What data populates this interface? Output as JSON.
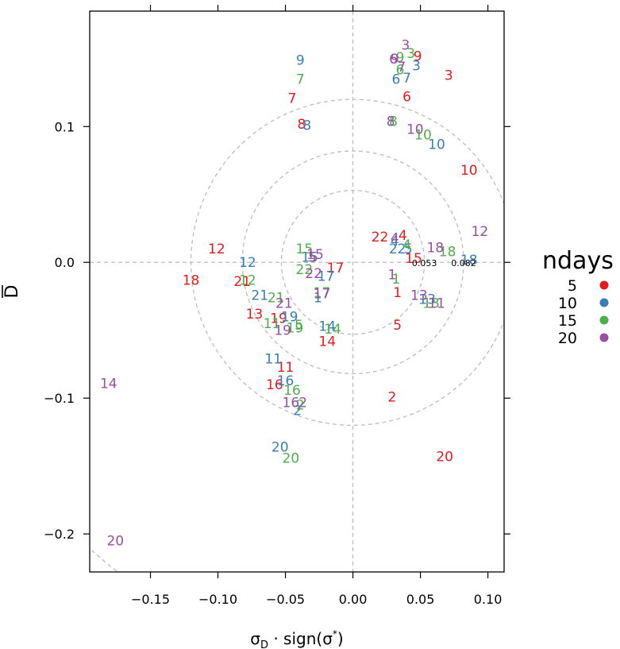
{
  "chart_data": {
    "type": "scatter",
    "xlabel": "σD · sign(σ*)",
    "ylabel": "D̄",
    "xlim": [
      -0.195,
      0.112
    ],
    "ylim": [
      -0.228,
      0.185
    ],
    "x_ticks": [
      -0.15,
      -0.1,
      -0.05,
      0.0,
      0.05,
      0.1
    ],
    "x_tick_labels": [
      "−0.15",
      "−0.10",
      "−0.05",
      "0.00",
      "0.05",
      "0.10"
    ],
    "y_ticks": [
      0.1,
      0.0,
      -0.1,
      -0.2
    ],
    "y_tick_labels": [
      "0.1",
      "0.0",
      "−0.1",
      "−0.2"
    ],
    "reference_lines": {
      "x": 0,
      "y": 0
    },
    "rings": [
      {
        "radius": 0.053,
        "label": "0.053"
      },
      {
        "radius": 0.082,
        "label": "0.082"
      },
      {
        "radius": 0.12,
        "label": ""
      },
      {
        "radius": 0.287,
        "label": ""
      }
    ],
    "marker": "point labels show the group number",
    "legend": {
      "title": "ndays",
      "placement": "right",
      "entries": [
        {
          "label": "5",
          "color": "#E41A1C"
        },
        {
          "label": "10",
          "color": "#377EB8"
        },
        {
          "label": "15",
          "color": "#4DAF4A"
        },
        {
          "label": "20",
          "color": "#984EA3"
        }
      ]
    },
    "series": [
      {
        "name": "5",
        "color": "#E41A1C",
        "points": [
          {
            "x": 0.033,
            "y": -0.022,
            "label": "1"
          },
          {
            "x": 0.029,
            "y": -0.099,
            "label": "2"
          },
          {
            "x": 0.071,
            "y": 0.138,
            "label": "3"
          },
          {
            "x": 0.037,
            "y": 0.02,
            "label": "4"
          },
          {
            "x": 0.033,
            "y": -0.046,
            "label": "5"
          },
          {
            "x": 0.04,
            "y": 0.122,
            "label": "6"
          },
          {
            "x": -0.045,
            "y": 0.121,
            "label": "7"
          },
          {
            "x": -0.038,
            "y": 0.102,
            "label": "8"
          },
          {
            "x": 0.048,
            "y": 0.152,
            "label": "9"
          },
          {
            "x": 0.086,
            "y": 0.068,
            "label": "10"
          },
          {
            "x": -0.05,
            "y": -0.077,
            "label": "11"
          },
          {
            "x": -0.101,
            "y": 0.01,
            "label": "12"
          },
          {
            "x": -0.073,
            "y": -0.038,
            "label": "13"
          },
          {
            "x": -0.019,
            "y": -0.058,
            "label": "14"
          },
          {
            "x": 0.045,
            "y": 0.003,
            "label": "15"
          },
          {
            "x": -0.058,
            "y": -0.09,
            "label": "16"
          },
          {
            "x": -0.013,
            "y": -0.004,
            "label": "17"
          },
          {
            "x": -0.12,
            "y": -0.013,
            "label": "18"
          },
          {
            "x": -0.055,
            "y": -0.041,
            "label": "19"
          },
          {
            "x": 0.068,
            "y": -0.143,
            "label": "20"
          },
          {
            "x": -0.082,
            "y": -0.014,
            "label": "21"
          },
          {
            "x": 0.02,
            "y": 0.019,
            "label": "22"
          }
        ]
      },
      {
        "name": "10",
        "color": "#377EB8",
        "points": [
          {
            "x": -0.026,
            "y": -0.026,
            "label": "1"
          },
          {
            "x": -0.041,
            "y": -0.109,
            "label": "2"
          },
          {
            "x": 0.047,
            "y": 0.145,
            "label": "3"
          },
          {
            "x": 0.031,
            "y": 0.016,
            "label": "4"
          },
          {
            "x": 0.041,
            "y": 0.01,
            "label": "5"
          },
          {
            "x": 0.032,
            "y": 0.135,
            "label": "6"
          },
          {
            "x": 0.04,
            "y": 0.136,
            "label": "7"
          },
          {
            "x": -0.034,
            "y": 0.101,
            "label": "8"
          },
          {
            "x": -0.039,
            "y": 0.149,
            "label": "9"
          },
          {
            "x": 0.062,
            "y": 0.087,
            "label": "10"
          },
          {
            "x": -0.059,
            "y": -0.071,
            "label": "11"
          },
          {
            "x": -0.078,
            "y": 0.0,
            "label": "12"
          },
          {
            "x": 0.055,
            "y": -0.027,
            "label": "13"
          },
          {
            "x": -0.019,
            "y": -0.047,
            "label": "14"
          },
          {
            "x": -0.032,
            "y": 0.004,
            "label": "15"
          },
          {
            "x": -0.05,
            "y": -0.087,
            "label": "16"
          },
          {
            "x": -0.02,
            "y": -0.01,
            "label": "17"
          },
          {
            "x": 0.086,
            "y": 0.002,
            "label": "18"
          },
          {
            "x": -0.047,
            "y": -0.04,
            "label": "19"
          },
          {
            "x": -0.054,
            "y": -0.136,
            "label": "20"
          },
          {
            "x": -0.069,
            "y": -0.024,
            "label": "21"
          },
          {
            "x": 0.033,
            "y": 0.01,
            "label": "22"
          }
        ]
      },
      {
        "name": "15",
        "color": "#4DAF4A",
        "points": [
          {
            "x": 0.032,
            "y": -0.012,
            "label": "1"
          },
          {
            "x": -0.039,
            "y": -0.105,
            "label": "2"
          },
          {
            "x": 0.043,
            "y": 0.154,
            "label": "3"
          },
          {
            "x": 0.04,
            "y": 0.013,
            "label": "4"
          },
          {
            "x": -0.04,
            "y": -0.046,
            "label": "5"
          },
          {
            "x": 0.035,
            "y": 0.142,
            "label": "6"
          },
          {
            "x": -0.039,
            "y": 0.135,
            "label": "7"
          },
          {
            "x": 0.03,
            "y": 0.104,
            "label": "8"
          },
          {
            "x": 0.035,
            "y": 0.151,
            "label": "9"
          },
          {
            "x": 0.052,
            "y": 0.094,
            "label": "10"
          },
          {
            "x": -0.06,
            "y": -0.045,
            "label": "11"
          },
          {
            "x": -0.078,
            "y": -0.013,
            "label": "12"
          },
          {
            "x": 0.058,
            "y": -0.03,
            "label": "13"
          },
          {
            "x": -0.015,
            "y": -0.049,
            "label": "14"
          },
          {
            "x": -0.036,
            "y": 0.01,
            "label": "15"
          },
          {
            "x": -0.045,
            "y": -0.094,
            "label": "16"
          },
          {
            "x": -0.023,
            "y": -0.022,
            "label": "17"
          },
          {
            "x": 0.07,
            "y": 0.008,
            "label": "18"
          },
          {
            "x": -0.043,
            "y": -0.048,
            "label": "19"
          },
          {
            "x": -0.046,
            "y": -0.144,
            "label": "20"
          },
          {
            "x": -0.057,
            "y": -0.026,
            "label": "21"
          },
          {
            "x": -0.036,
            "y": -0.005,
            "label": "22"
          }
        ]
      },
      {
        "name": "20",
        "color": "#984EA3",
        "points": [
          {
            "x": 0.029,
            "y": -0.009,
            "label": "1"
          },
          {
            "x": -0.037,
            "y": -0.103,
            "label": "2"
          },
          {
            "x": 0.039,
            "y": 0.16,
            "label": "3"
          },
          {
            "x": 0.031,
            "y": 0.018,
            "label": "4"
          },
          {
            "x": -0.03,
            "y": 0.004,
            "label": "5"
          },
          {
            "x": 0.03,
            "y": 0.15,
            "label": "6"
          },
          {
            "x": 0.036,
            "y": 0.144,
            "label": "7"
          },
          {
            "x": 0.028,
            "y": 0.104,
            "label": "8"
          },
          {
            "x": 0.031,
            "y": 0.15,
            "label": "9"
          },
          {
            "x": 0.046,
            "y": 0.098,
            "label": "10"
          },
          {
            "x": 0.062,
            "y": -0.03,
            "label": "11"
          },
          {
            "x": 0.094,
            "y": 0.023,
            "label": "12"
          },
          {
            "x": 0.049,
            "y": -0.024,
            "label": "13"
          },
          {
            "x": -0.181,
            "y": -0.089,
            "label": "14"
          },
          {
            "x": -0.028,
            "y": 0.006,
            "label": "15"
          },
          {
            "x": -0.046,
            "y": -0.103,
            "label": "16"
          },
          {
            "x": -0.023,
            "y": -0.023,
            "label": "17"
          },
          {
            "x": 0.061,
            "y": 0.011,
            "label": "18"
          },
          {
            "x": -0.052,
            "y": -0.05,
            "label": "19"
          },
          {
            "x": -0.176,
            "y": -0.205,
            "label": "20"
          },
          {
            "x": -0.051,
            "y": -0.03,
            "label": "21"
          },
          {
            "x": -0.029,
            "y": -0.008,
            "label": "22"
          }
        ]
      }
    ]
  }
}
